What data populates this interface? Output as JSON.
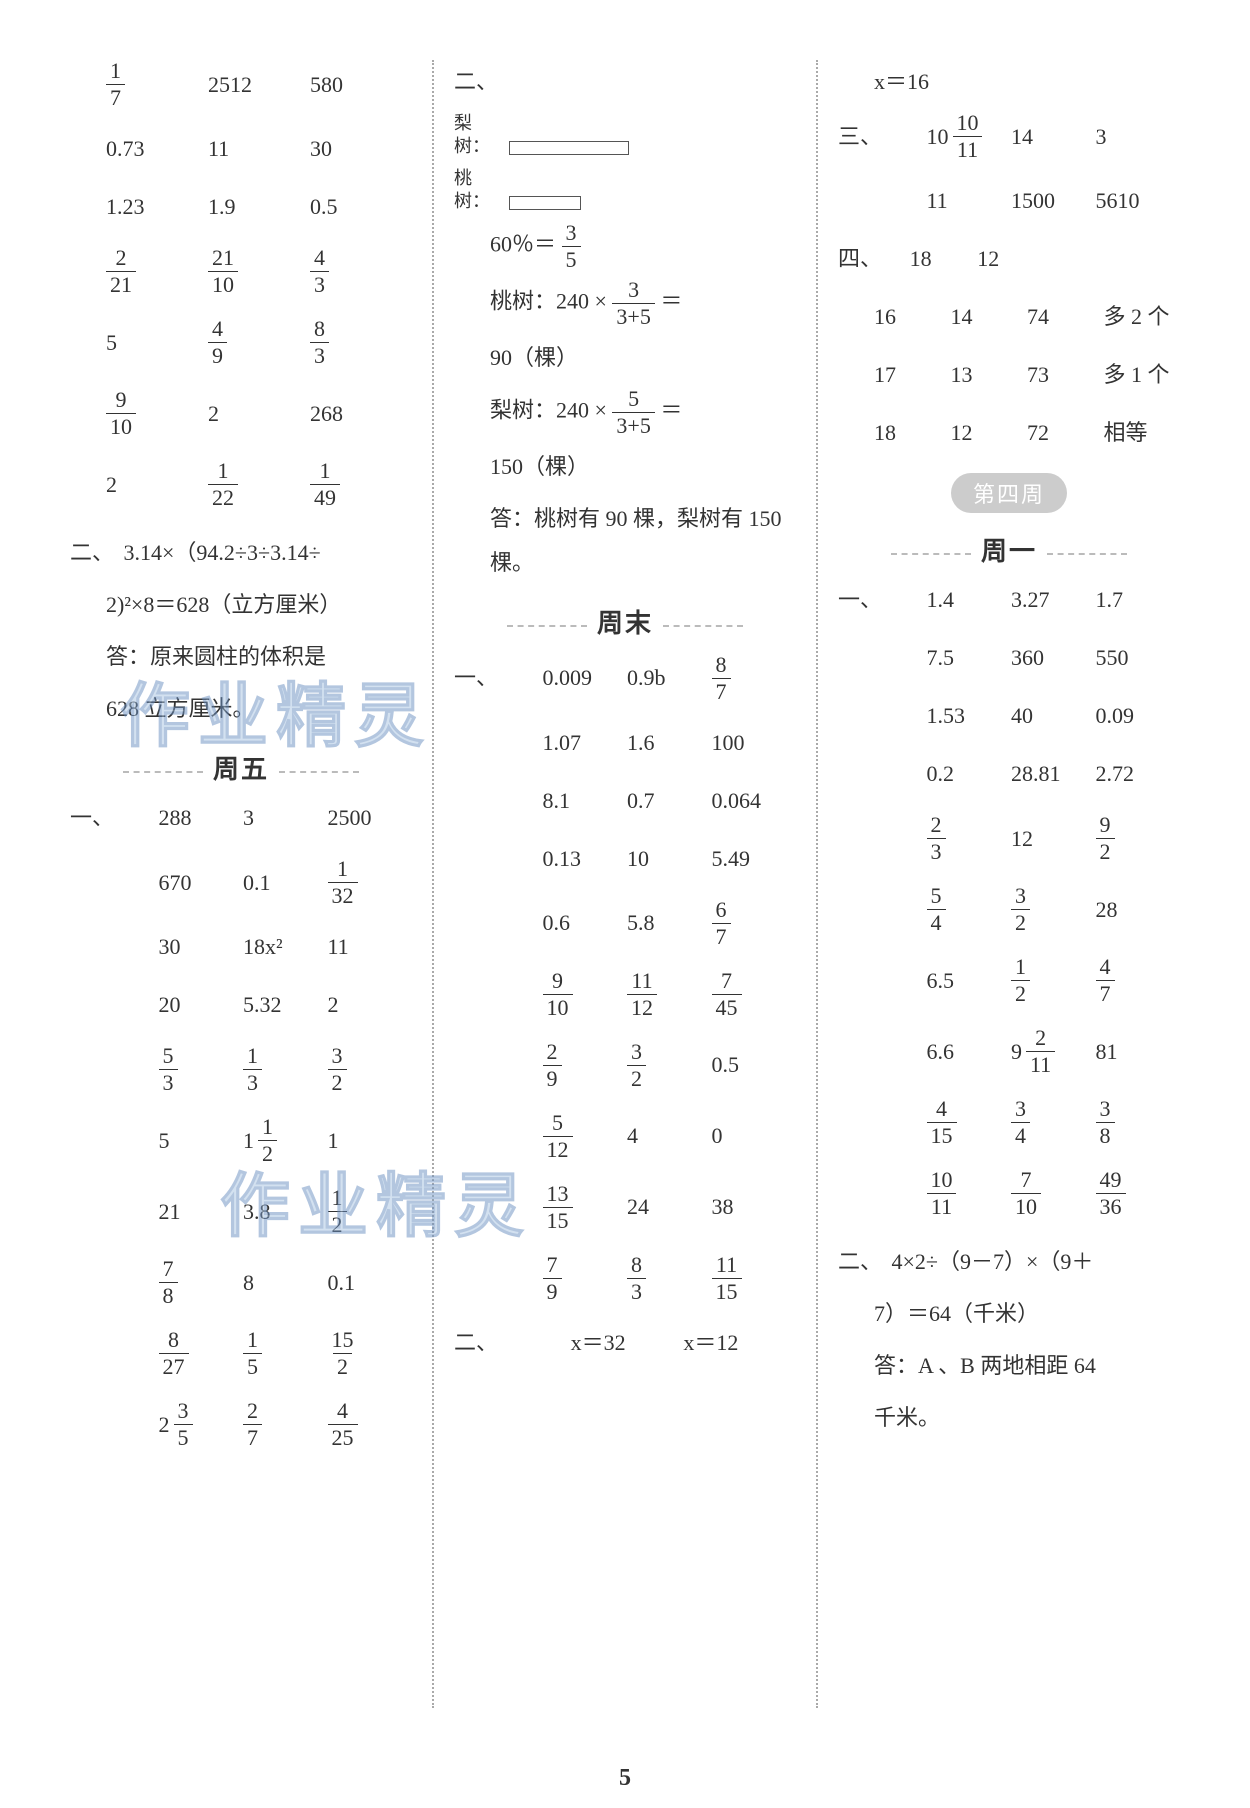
{
  "page_number": "5",
  "watermarks": [
    "作业精灵",
    "作业精灵"
  ],
  "col1": {
    "grid1": [
      [
        "__frac_1_7",
        "2512",
        "580"
      ],
      [
        "0.73",
        "11",
        "30"
      ],
      [
        "1.23",
        "1.9",
        "0.5"
      ],
      [
        "__frac_2_21",
        "__frac_21_10",
        "__frac_4_3"
      ],
      [
        "5",
        "__frac_4_9",
        "__frac_8_3"
      ],
      [
        "__frac_9_10",
        "2",
        "268"
      ],
      [
        "2",
        "__frac_1_22",
        "__frac_1_49"
      ]
    ],
    "problem2_label": "二、",
    "problem2_lines": [
      "3.14×（94.2÷3÷3.14÷",
      "2)²×8＝628（立方厘米）",
      "答：原来圆柱的体积是",
      "628 立方厘米。"
    ],
    "friday_title": "周五",
    "friday_label": "一、",
    "friday_grid": [
      [
        "288",
        "3",
        "2500"
      ],
      [
        "670",
        "0.1",
        "__frac_1_32"
      ],
      [
        "30",
        "18x²",
        "11"
      ],
      [
        "20",
        "5.32",
        "2"
      ],
      [
        "__frac_5_3",
        "__frac_1_3",
        "__frac_3_2"
      ],
      [
        "5",
        "__mixed_1_1_2",
        "1"
      ],
      [
        "21",
        "3.8",
        "__frac_1_2"
      ],
      [
        "__frac_7_8",
        "8",
        "0.1"
      ],
      [
        "__frac_8_27",
        "__frac_1_5",
        "__frac_15_2"
      ],
      [
        "__mixed_2_3_5",
        "__frac_2_7",
        "__frac_4_25"
      ]
    ]
  },
  "col2": {
    "sec2_label": "二、",
    "diagram": {
      "pear": "梨树：",
      "peach": "桃树："
    },
    "eq1_left": "60％＝",
    "eq1_frac": "__frac_3_5",
    "peach_calc_prefix": "桃树：240 × ",
    "peach_frac": "__frac_3_3+5",
    "eq_equals": " ＝",
    "peach_result": "90（棵）",
    "pear_calc_prefix": "梨树：240 × ",
    "pear_frac": "__frac_5_3+5",
    "pear_result": "150（棵）",
    "answer": "答：桃树有 90 棵，梨树有 150 棵。",
    "weekend_title": "周末",
    "weekend_label": "一、",
    "weekend_grid": [
      [
        "0.009",
        "0.9b",
        "__frac_8_7"
      ],
      [
        "1.07",
        "1.6",
        "100"
      ],
      [
        "8.1",
        "0.7",
        "0.064"
      ],
      [
        "0.13",
        "10",
        "5.49"
      ],
      [
        "0.6",
        "5.8",
        "__frac_6_7"
      ],
      [
        "__frac_9_10",
        "__frac_11_12",
        "__frac_7_45"
      ],
      [
        "__frac_2_9",
        "__frac_3_2",
        "0.5"
      ],
      [
        "__frac_5_12",
        "4",
        "0"
      ],
      [
        "__frac_13_15",
        "24",
        "38"
      ],
      [
        "__frac_7_9",
        "__frac_8_3",
        "__frac_11_15"
      ]
    ],
    "weekend2_label": "二、",
    "weekend2_vals": [
      "x＝32",
      "x＝12"
    ]
  },
  "col3": {
    "top_line": "x＝16",
    "sec3_label": "三、",
    "sec3_grid": [
      [
        "__mixed_10_10_11",
        "14",
        "3"
      ],
      [
        "11",
        "1500",
        "5610"
      ]
    ],
    "sec4_label": "四、",
    "sec4_first": [
      "18",
      "12"
    ],
    "sec4_grid": [
      [
        "16",
        "14",
        "74",
        "多 2 个"
      ],
      [
        "17",
        "13",
        "73",
        "多 1 个"
      ],
      [
        "18",
        "12",
        "72",
        "相等"
      ]
    ],
    "week4_badge": "第四周",
    "monday_title": "周一",
    "monday_label": "一、",
    "monday_grid": [
      [
        "1.4",
        "3.27",
        "1.7"
      ],
      [
        "7.5",
        "360",
        "550"
      ],
      [
        "1.53",
        "40",
        "0.09"
      ],
      [
        "0.2",
        "28.81",
        "2.72"
      ],
      [
        "__frac_2_3",
        "12",
        "__frac_9_2"
      ],
      [
        "__frac_5_4",
        "__frac_3_2",
        "28"
      ],
      [
        "6.5",
        "__frac_1_2",
        "__frac_4_7"
      ],
      [
        "6.6",
        "__mixed_9_2_11",
        "81"
      ],
      [
        "__frac_4_15",
        "__frac_3_4",
        "__frac_3_8"
      ],
      [
        "__frac_10_11",
        "__frac_7_10",
        "__frac_49_36"
      ]
    ],
    "monday2_label": "二、",
    "monday2_lines": [
      "4×2÷（9－7）×（9＋",
      "7）＝64（千米）",
      "答：A 、B 两地相距 64",
      "千米。"
    ]
  }
}
